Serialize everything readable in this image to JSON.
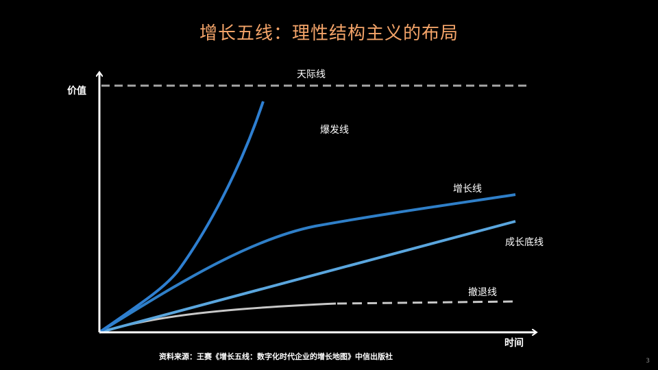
{
  "slide": {
    "title": "增长五线：理性结构主义的布局",
    "page_number": "3",
    "source_note": "资料来源：王赛《增长五线：数字化时代企业的增长地图》中信出版社"
  },
  "axes": {
    "y_label": "价值",
    "x_label": "时间"
  },
  "lines": {
    "sky": "天际线",
    "explosion": "爆发线",
    "growth": "增长线",
    "baseline": "成长底线",
    "retreat": "撤退线"
  },
  "colors": {
    "title": "#f4a469",
    "sky_line": "#a6a6a6",
    "explosion_line": "#2e7fd1",
    "growth_line": "#2f7fc8",
    "baseline_line": "#5aa6de",
    "retreat_line": "#c8c8c8",
    "axis": "#ffffff"
  }
}
